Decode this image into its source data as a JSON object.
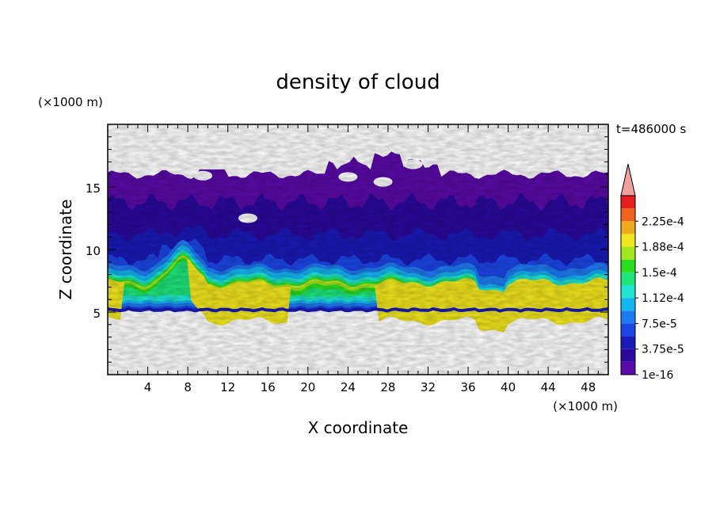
{
  "chart_data": {
    "type": "heatmap",
    "title": "density of cloud",
    "xlabel": "X coordinate",
    "ylabel": "Z coordinate",
    "x_unit": "(×1000 m)",
    "y_unit": "(×1000 m)",
    "time_label": "t=486000 s",
    "xlim": [
      0,
      50
    ],
    "ylim": [
      0,
      20
    ],
    "x_ticks": [
      "4",
      "8",
      "12",
      "16",
      "20",
      "24",
      "28",
      "32",
      "36",
      "40",
      "44",
      "48"
    ],
    "y_ticks": [
      "5",
      "10",
      "15"
    ],
    "colorbar": {
      "labels": [
        "1e-16",
        "3.75e-5",
        "7.5e-5",
        "1.12e-4",
        "1.5e-4",
        "1.88e-4",
        "2.25e-4"
      ],
      "levels": [
        1e-16,
        1.875e-05,
        3.75e-05,
        5.625e-05,
        7.5e-05,
        9.375e-05,
        0.0001125,
        0.00013125,
        0.00015,
        0.00016875,
        0.0001875,
        0.00020625,
        0.000225,
        0.00024375
      ],
      "colors": [
        "#5a0aa8",
        "#2a0a9e",
        "#1a1ab8",
        "#1c46e6",
        "#1e7af0",
        "#14b4f0",
        "#1ee6d2",
        "#1ee67a",
        "#2ade1e",
        "#a0e61e",
        "#f0e61e",
        "#f0aa1e",
        "#f0641e",
        "#e61e1e"
      ],
      "extend_color": "#f0a0a0"
    },
    "field_summary": {
      "cloud_base_z": 5,
      "cloud_top_z": [
        15.5,
        18
      ],
      "max_density_region": {
        "x": [
          0,
          30
        ],
        "z": [
          6.5,
          8.5
        ],
        "value_range": [
          0.00015,
          0.0002
        ]
      },
      "low_density_band_z": [
        11,
        17
      ]
    }
  }
}
